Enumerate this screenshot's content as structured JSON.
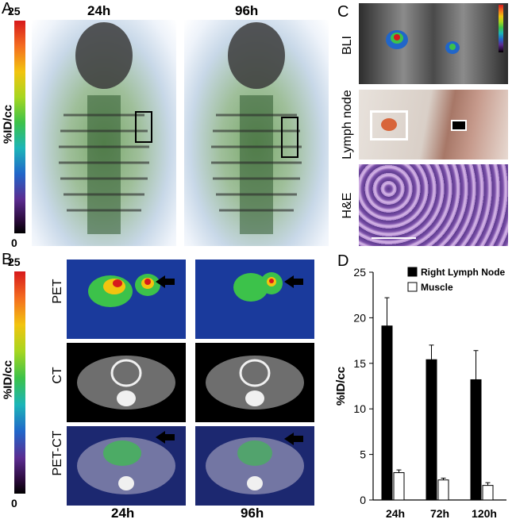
{
  "panel_a": {
    "letter": "A",
    "time_left": "24h",
    "time_right": "96h",
    "colorbar_max": "25",
    "colorbar_min": "0",
    "colorbar_label": "%ID/cc"
  },
  "panel_b": {
    "letter": "B",
    "colorbar_max": "25",
    "colorbar_min": "0",
    "colorbar_label": "%ID/cc",
    "rows": [
      "PET",
      "CT",
      "PET-CT"
    ],
    "time_left": "24h",
    "time_right": "96h"
  },
  "panel_c": {
    "letter": "C",
    "rows": [
      "BLI",
      "Lymph node",
      "H&E"
    ]
  },
  "panel_d": {
    "letter": "D"
  },
  "chart_data": {
    "type": "bar",
    "categories": [
      "24h",
      "72h",
      "120h"
    ],
    "series": [
      {
        "name": "Right Lymph Node",
        "values": [
          19.1,
          15.4,
          13.2
        ],
        "errors": [
          3.1,
          1.6,
          3.2
        ],
        "color": "#000000"
      },
      {
        "name": "Muscle",
        "values": [
          3.0,
          2.2,
          1.6
        ],
        "errors": [
          0.3,
          0.2,
          0.3
        ],
        "color": "#ffffff"
      }
    ],
    "ylabel": "%ID/cc",
    "xlabel": "",
    "ylim": [
      0,
      25
    ],
    "yticks": [
      0,
      5,
      10,
      15,
      20,
      25
    ],
    "legend_position": "top-right",
    "grid": false
  }
}
